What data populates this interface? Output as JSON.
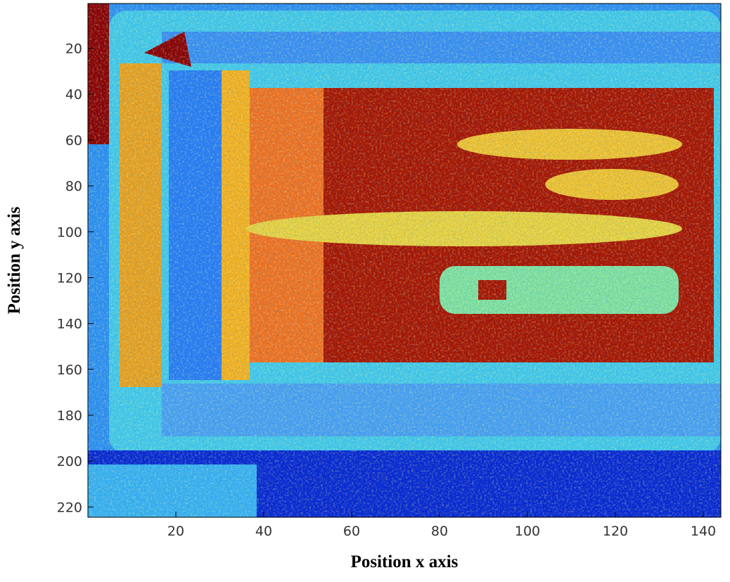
{
  "chart_data": {
    "type": "heatmap",
    "x_label": "Position x axis",
    "y_label": "Position y axis",
    "xlim": [
      0,
      144
    ],
    "xticks": [
      20,
      40,
      60,
      80,
      100,
      120,
      140
    ],
    "ylim": [
      224.5,
      0.5
    ],
    "yticks": [
      20,
      40,
      60,
      80,
      100,
      120,
      140,
      160,
      180,
      200,
      220
    ]
  }
}
